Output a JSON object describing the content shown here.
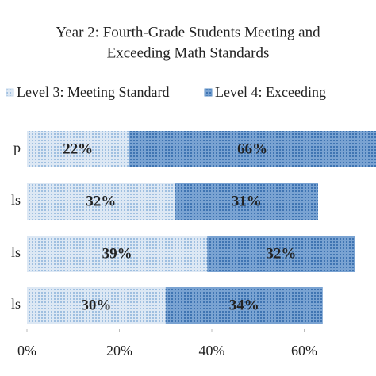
{
  "chart_data": {
    "type": "stacked_barh",
    "title": [
      "Year 2: Fourth-Grade Students Meeting and",
      "Exceeding Math Standards"
    ],
    "categories": [
      "p",
      "ls",
      "ls",
      "ls"
    ],
    "series": [
      {
        "name": "Level 3: Meeting Standard",
        "color": "#c6d8ec",
        "values": [
          22,
          32,
          39,
          30
        ],
        "value_labels": [
          "22%",
          "32%",
          "39%",
          "30%"
        ]
      },
      {
        "name": "Level 4: Exceeding",
        "color": "#5d8fc6",
        "values": [
          66,
          31,
          32,
          34
        ],
        "value_labels": [
          "66%",
          "31%",
          "32%",
          "34%"
        ]
      }
    ],
    "xlim": [
      0,
      80
    ],
    "xticks": [
      {
        "value": 0,
        "label": "0%"
      },
      {
        "value": 20,
        "label": "20%"
      },
      {
        "value": 40,
        "label": "40%"
      },
      {
        "value": 60,
        "label": "60%"
      }
    ]
  }
}
